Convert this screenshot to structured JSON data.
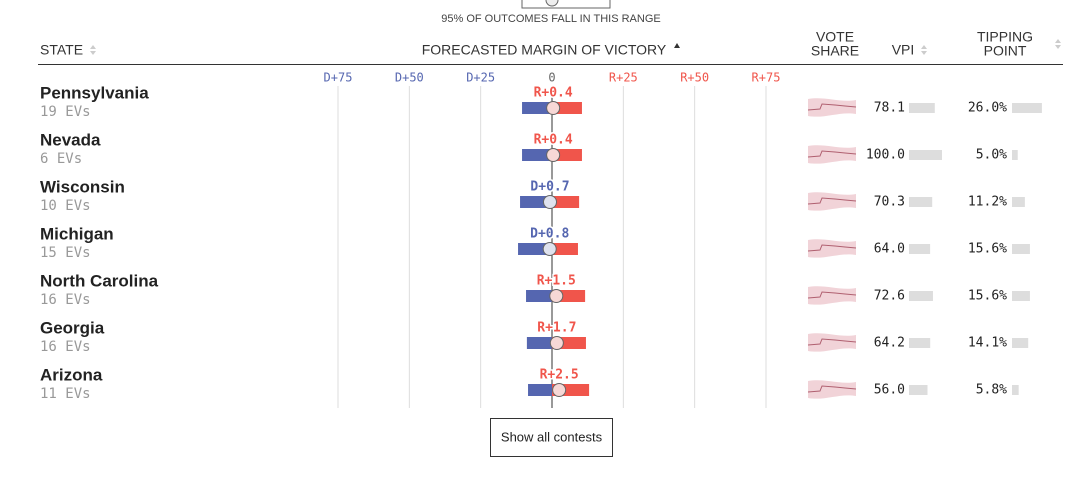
{
  "legend_note": "95% OF OUTCOMES FALL IN THIS RANGE",
  "columns": {
    "state": "STATE",
    "margin": "FORECASTED MARGIN OF VICTORY",
    "vote_share": [
      "VOTE",
      "SHARE"
    ],
    "vpi": "VPI",
    "tipping_point": [
      "TIPPING",
      "POINT"
    ]
  },
  "margin_axis": {
    "lim": [
      -85,
      85
    ],
    "ticks": [
      {
        "value": -75,
        "label": "D+75"
      },
      {
        "value": -50,
        "label": "D+50"
      },
      {
        "value": -25,
        "label": "D+25"
      },
      0,
      {
        "value": 25,
        "label": "R+25"
      },
      {
        "value": 50,
        "label": "R+50"
      },
      {
        "value": 75,
        "label": "R+75"
      }
    ]
  },
  "colors": {
    "dem": "#5566b0",
    "rep": "#f0554b"
  },
  "rows": [
    {
      "state": "Pennsylvania",
      "evs": "19 EVs",
      "margin": 0.4,
      "margin_label": "R+0.4",
      "range": [
        -10.5,
        10.5
      ],
      "vpi": 78.1,
      "vpi_label": "78.1",
      "tipping_point": 26.0,
      "tipping_point_label": "26.0%"
    },
    {
      "state": "Nevada",
      "evs": "6 EVs",
      "margin": 0.4,
      "margin_label": "R+0.4",
      "range": [
        -10.5,
        10.5
      ],
      "vpi": 100,
      "vpi_label": "100.0",
      "tipping_point": 5.0,
      "tipping_point_label": "5.0%"
    },
    {
      "state": "Wisconsin",
      "evs": "10 EVs",
      "margin": -0.7,
      "margin_label": "D+0.7",
      "range": [
        -11.2,
        9.5
      ],
      "vpi": 70.3,
      "vpi_label": "70.3",
      "tipping_point": 11.2,
      "tipping_point_label": "11.2%"
    },
    {
      "state": "Michigan",
      "evs": "15 EVs",
      "margin": -0.8,
      "margin_label": "D+0.8",
      "range": [
        -11.9,
        9.1
      ],
      "vpi": 64.0,
      "vpi_label": "64.0",
      "tipping_point": 15.6,
      "tipping_point_label": "15.6%"
    },
    {
      "state": "North Carolina",
      "evs": "16 EVs",
      "margin": 1.5,
      "margin_label": "R+1.5",
      "range": [
        -9.1,
        11.6
      ],
      "vpi": 72.6,
      "vpi_label": "72.6",
      "tipping_point": 15.6,
      "tipping_point_label": "15.6%"
    },
    {
      "state": "Georgia",
      "evs": "16 EVs",
      "margin": 1.7,
      "margin_label": "R+1.7",
      "range": [
        -8.8,
        11.9
      ],
      "vpi": 64.2,
      "vpi_label": "64.2",
      "tipping_point": 14.1,
      "tipping_point_label": "14.1%"
    },
    {
      "state": "Arizona",
      "evs": "11 EVs",
      "margin": 2.5,
      "margin_label": "R+2.5",
      "range": [
        -8.4,
        13.0
      ],
      "vpi": 56.0,
      "vpi_label": "56.0",
      "tipping_point": 5.8,
      "tipping_point_label": "5.8%"
    }
  ],
  "button": "Show all contests"
}
